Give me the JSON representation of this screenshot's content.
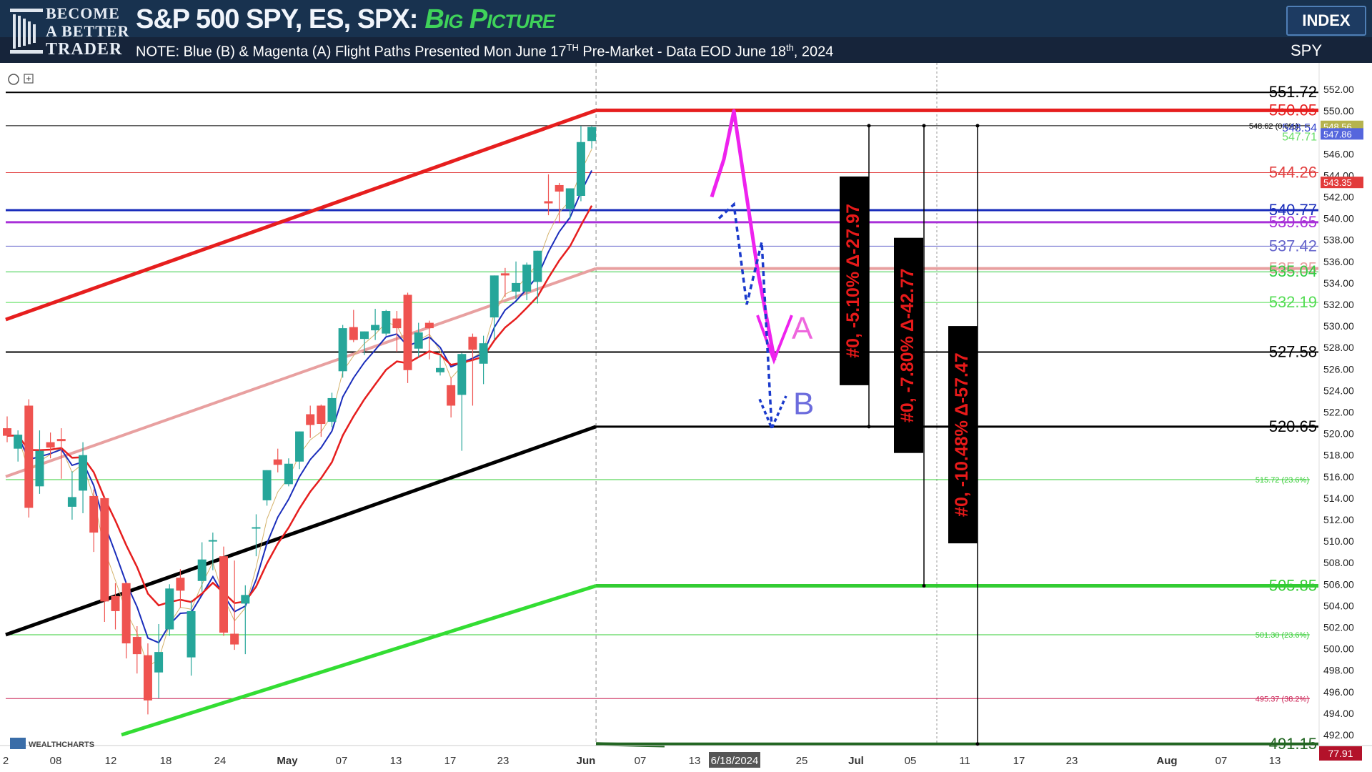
{
  "header": {
    "brand_line1": "BECOME",
    "brand_line2": "A BETTER",
    "brand_line3": "TRADER",
    "title": "S&P 500 SPY, ES, SPX:",
    "title_accent": "Big Picture",
    "note_prefix": "NOTE: Blue (B) & Magenta (A) Flight Paths Presented Mon June 17",
    "note_sup1": "TH",
    "note_mid": " Pre-Market - Data EOD June 18",
    "note_sup2": "th",
    "note_suffix": ", 2024",
    "index_button": "INDEX",
    "ticker": "SPY",
    "source_logo": "WEALTHCHARTS"
  },
  "colors": {
    "up_candle": "#26a69a",
    "down_candle": "#ef5350",
    "red_channel": "#e61e1e",
    "pink_channel": "#e8a0a0",
    "black_channel": "#000000",
    "green_channel": "#33dd33",
    "magenta_path": "#ee22ee",
    "blue_path": "#1a3acc"
  },
  "chart_data": {
    "type": "candlestick",
    "symbol": "SPY",
    "timeframe": "Daily",
    "ylim": [
      490,
      553
    ],
    "y_ticks": [
      492,
      494,
      496,
      498,
      500,
      502,
      504,
      506,
      508,
      510,
      512,
      514,
      516,
      518,
      520,
      522,
      524,
      526,
      528,
      530,
      532,
      534,
      536,
      538,
      540,
      542,
      544,
      546,
      548,
      550,
      552
    ],
    "x_tick_labels": [
      "2",
      "08",
      "12",
      "18",
      "24",
      "May",
      "07",
      "13",
      "17",
      "23",
      "Jun",
      "07",
      "13",
      "6/18/2024",
      "25",
      "Jul",
      "05",
      "11",
      "17",
      "23",
      "Aug",
      "07",
      "13"
    ],
    "current_date_label": "6/18/2024",
    "current_price_label": "548.56",
    "bottom_right_label": "77.91",
    "small_price_tags": [
      {
        "value": 548.56,
        "text": "548.56",
        "color": "#b6b34e"
      },
      {
        "value": 543.35,
        "text": "543.35",
        "color": "#e23b3b"
      },
      {
        "value": 547.86,
        "text": "547.86",
        "color": "#5566dd"
      }
    ],
    "candles": [
      {
        "date": "Apr 02",
        "o": 520.5,
        "h": 521.6,
        "l": 519.2,
        "c": 519.8
      },
      {
        "date": "Apr 03",
        "o": 518.6,
        "h": 520.3,
        "l": 517.4,
        "c": 519.9
      },
      {
        "date": "Apr 04",
        "o": 522.6,
        "h": 523.2,
        "l": 512.2,
        "c": 513.1
      },
      {
        "date": "Apr 05",
        "o": 515.1,
        "h": 520.3,
        "l": 514.4,
        "c": 518.4
      },
      {
        "date": "Apr 08",
        "o": 519.2,
        "h": 520.1,
        "l": 517.7,
        "c": 518.7
      },
      {
        "date": "Apr 09",
        "o": 519.5,
        "h": 520.5,
        "l": 515.8,
        "c": 519.3
      },
      {
        "date": "Apr 10",
        "o": 513.2,
        "h": 516.5,
        "l": 512.0,
        "c": 514.1
      },
      {
        "date": "Apr 11",
        "o": 514.7,
        "h": 519.2,
        "l": 512.6,
        "c": 518.0
      },
      {
        "date": "Apr 12",
        "o": 514.2,
        "h": 514.8,
        "l": 509.0,
        "c": 510.8
      },
      {
        "date": "Apr 15",
        "o": 514.0,
        "h": 514.2,
        "l": 502.5,
        "c": 504.4
      },
      {
        "date": "Apr 16",
        "o": 504.9,
        "h": 506.1,
        "l": 501.8,
        "c": 503.5
      },
      {
        "date": "Apr 17",
        "o": 506.1,
        "h": 506.2,
        "l": 499.1,
        "c": 500.5
      },
      {
        "date": "Apr 18",
        "o": 501.1,
        "h": 502.1,
        "l": 497.7,
        "c": 499.5
      },
      {
        "date": "Apr 19",
        "o": 499.4,
        "h": 500.5,
        "l": 493.9,
        "c": 495.2
      },
      {
        "date": "Apr 22",
        "o": 497.8,
        "h": 502.3,
        "l": 495.4,
        "c": 499.7
      },
      {
        "date": "Apr 23",
        "o": 501.8,
        "h": 506.0,
        "l": 501.2,
        "c": 505.6
      },
      {
        "date": "Apr 24",
        "o": 506.6,
        "h": 507.4,
        "l": 503.8,
        "c": 505.4
      },
      {
        "date": "Apr 25",
        "o": 499.2,
        "h": 504.5,
        "l": 497.5,
        "c": 503.5
      },
      {
        "date": "Apr 26",
        "o": 506.3,
        "h": 509.9,
        "l": 505.3,
        "c": 508.3
      },
      {
        "date": "Apr 29",
        "o": 510.1,
        "h": 510.8,
        "l": 507.3,
        "c": 510.1
      },
      {
        "date": "Apr 30",
        "o": 508.6,
        "h": 509.5,
        "l": 501.2,
        "c": 501.5
      },
      {
        "date": "May 01",
        "o": 501.4,
        "h": 508.2,
        "l": 499.9,
        "c": 500.4
      },
      {
        "date": "May 02",
        "o": 504.2,
        "h": 505.9,
        "l": 499.5,
        "c": 505.0
      },
      {
        "date": "May 03",
        "o": 511.2,
        "h": 512.5,
        "l": 508.6,
        "c": 511.3
      },
      {
        "date": "May 06",
        "o": 513.8,
        "h": 516.6,
        "l": 513.3,
        "c": 516.6
      },
      {
        "date": "May 07",
        "o": 517.6,
        "h": 518.6,
        "l": 516.4,
        "c": 517.1
      },
      {
        "date": "May 08",
        "o": 515.3,
        "h": 517.7,
        "l": 515.1,
        "c": 517.2
      },
      {
        "date": "May 09",
        "o": 517.4,
        "h": 520.2,
        "l": 516.7,
        "c": 520.2
      },
      {
        "date": "May 10",
        "o": 521.8,
        "h": 522.6,
        "l": 519.6,
        "c": 520.8
      },
      {
        "date": "May 13",
        "o": 522.6,
        "h": 522.7,
        "l": 519.7,
        "c": 520.9
      },
      {
        "date": "May 14",
        "o": 521.1,
        "h": 523.8,
        "l": 520.6,
        "c": 523.3
      },
      {
        "date": "May 15",
        "o": 525.8,
        "h": 530.1,
        "l": 525.2,
        "c": 529.8
      },
      {
        "date": "May 16",
        "o": 529.9,
        "h": 531.5,
        "l": 528.5,
        "c": 528.7
      },
      {
        "date": "May 17",
        "o": 528.8,
        "h": 529.5,
        "l": 527.3,
        "c": 529.5
      },
      {
        "date": "May 20",
        "o": 529.6,
        "h": 531.6,
        "l": 528.7,
        "c": 530.1
      },
      {
        "date": "May 21",
        "o": 529.3,
        "h": 531.5,
        "l": 529.1,
        "c": 531.4
      },
      {
        "date": "May 22",
        "o": 530.7,
        "h": 531.4,
        "l": 527.6,
        "c": 529.8
      },
      {
        "date": "May 23",
        "o": 532.9,
        "h": 533.1,
        "l": 524.7,
        "c": 525.9
      },
      {
        "date": "May 24",
        "o": 527.9,
        "h": 530.3,
        "l": 527.1,
        "c": 529.4
      },
      {
        "date": "May 28",
        "o": 530.3,
        "h": 530.5,
        "l": 526.9,
        "c": 529.8
      },
      {
        "date": "May 29",
        "o": 525.7,
        "h": 527.3,
        "l": 525.4,
        "c": 526.1
      },
      {
        "date": "May 30",
        "o": 524.5,
        "h": 525.2,
        "l": 521.5,
        "c": 522.6
      },
      {
        "date": "May 31",
        "o": 523.6,
        "h": 527.5,
        "l": 518.4,
        "c": 527.4
      },
      {
        "date": "Jun 03",
        "o": 529.0,
        "h": 529.3,
        "l": 522.6,
        "c": 527.8
      },
      {
        "date": "Jun 04",
        "o": 526.5,
        "h": 529.1,
        "l": 524.6,
        "c": 528.4
      },
      {
        "date": "Jun 05",
        "o": 530.8,
        "h": 534.7,
        "l": 528.7,
        "c": 534.7
      },
      {
        "date": "Jun 06",
        "o": 534.9,
        "h": 535.4,
        "l": 532.7,
        "c": 534.7
      },
      {
        "date": "Jun 07",
        "o": 533.2,
        "h": 536.0,
        "l": 532.5,
        "c": 534.0
      },
      {
        "date": "Jun 10",
        "o": 533.2,
        "h": 535.9,
        "l": 532.4,
        "c": 535.7
      },
      {
        "date": "Jun 11",
        "o": 534.1,
        "h": 537.0,
        "l": 532.1,
        "c": 537.0
      },
      {
        "date": "Jun 12",
        "o": 541.6,
        "h": 544.1,
        "l": 540.3,
        "c": 541.4
      },
      {
        "date": "Jun 13",
        "o": 543.1,
        "h": 543.3,
        "l": 539.6,
        "c": 542.5
      },
      {
        "date": "Jun 14",
        "o": 540.9,
        "h": 542.8,
        "l": 539.9,
        "c": 542.8
      },
      {
        "date": "Jun 17",
        "o": 542.1,
        "h": 548.6,
        "l": 541.6,
        "c": 547.1
      },
      {
        "date": "Jun 18",
        "o": 547.2,
        "h": 548.6,
        "l": 546.5,
        "c": 548.5
      }
    ],
    "levels": [
      {
        "value": 551.72,
        "label": "551.72",
        "color": "#000000"
      },
      {
        "value": 550.05,
        "label": "550.05",
        "color": "#e61e1e"
      },
      {
        "value": 548.62,
        "label": "548.62 (0.0%)",
        "color": "#000000"
      },
      {
        "value": 548.54,
        "label": "548.54",
        "color": "#3344cc"
      },
      {
        "value": 547.71,
        "label": "547.71",
        "color": "#66dd66"
      },
      {
        "value": 544.26,
        "label": "544.26",
        "color": "#e24040"
      },
      {
        "value": 540.77,
        "label": "540.77",
        "color": "#1a2dbb"
      },
      {
        "value": 539.65,
        "label": "539.65",
        "color": "#a830d8"
      },
      {
        "value": 537.42,
        "label": "537.42",
        "color": "#6666cc"
      },
      {
        "value": 535.35,
        "label": "535.35",
        "color": "#e8a0a0"
      },
      {
        "value": 535.04,
        "label": "535.04",
        "color": "#33cc44"
      },
      {
        "value": 532.19,
        "label": "532.19",
        "color": "#55dd55"
      },
      {
        "value": 527.58,
        "label": "527.58",
        "color": "#000000"
      },
      {
        "value": 520.65,
        "label": "520.65",
        "color": "#000000"
      },
      {
        "value": 515.72,
        "label": "515.72 (23.6%)",
        "color": "#33cc33"
      },
      {
        "value": 505.85,
        "label": "505.85",
        "color": "#33cc33"
      },
      {
        "value": 501.3,
        "label": "501.30 (23.6%)",
        "color": "#33cc33"
      },
      {
        "value": 495.37,
        "label": "495.37 (38.2%)",
        "color": "#cc2255"
      },
      {
        "value": 491.15,
        "label": "491.15",
        "color": "#226622"
      }
    ],
    "annotations": [
      {
        "text": "A",
        "color": "#ee66dd"
      },
      {
        "text": "B",
        "color": "#6c6cdd"
      }
    ],
    "boxes": [
      {
        "text": "#0, -5.10% Δ-27.97"
      },
      {
        "text": "#0, -7.80% Δ-42.77"
      },
      {
        "text": "#0, -10.48% Δ-57.47"
      }
    ]
  }
}
